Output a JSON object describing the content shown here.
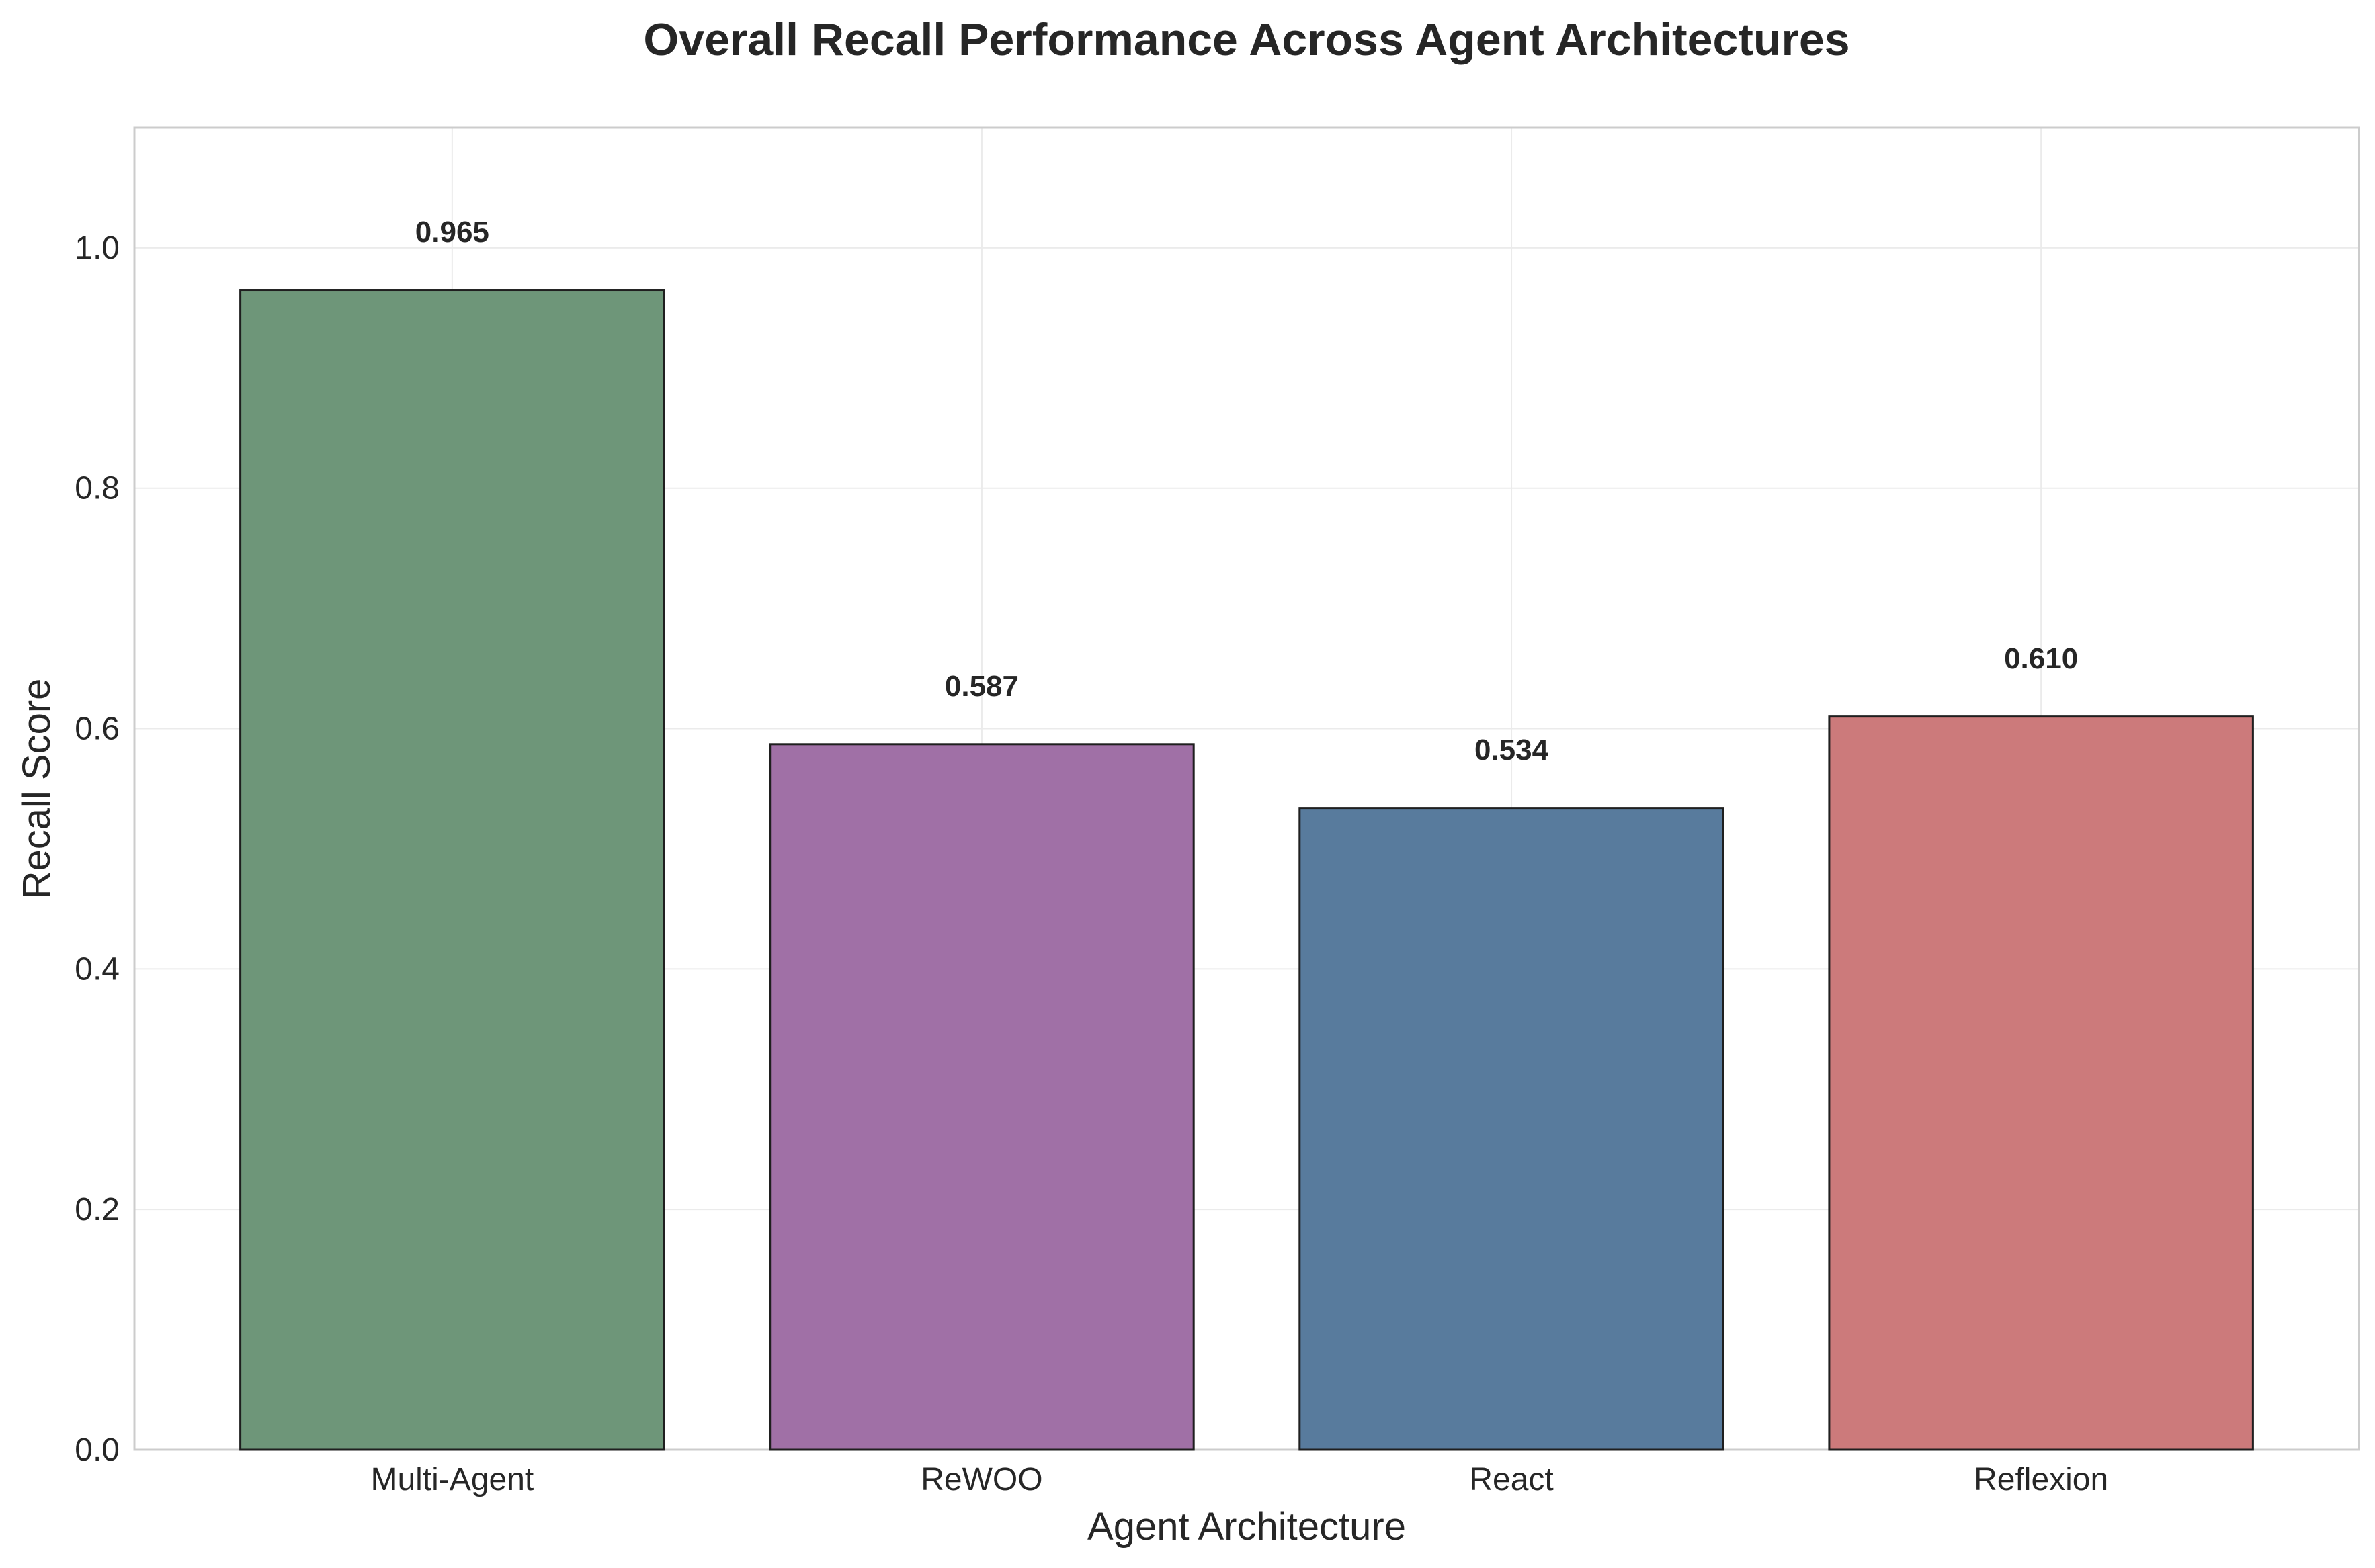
{
  "chart_data": {
    "type": "bar",
    "title": "Overall Recall Performance Across Agent Architectures",
    "xlabel": "Agent Architecture",
    "ylabel": "Recall Score",
    "categories": [
      "Multi-Agent",
      "ReWOO",
      "React",
      "Reflexion"
    ],
    "values": [
      0.965,
      0.587,
      0.534,
      0.61
    ],
    "value_labels": [
      "0.965",
      "0.587",
      "0.534",
      "0.610"
    ],
    "colors": [
      "#6e9679",
      "#a070a6",
      "#587b9d",
      "#cc7a7b"
    ],
    "ylim": [
      0,
      1.1
    ],
    "yticks": [
      0.0,
      0.2,
      0.4,
      0.6,
      0.8,
      1.0
    ],
    "ytick_labels": [
      "0.0",
      "0.2",
      "0.4",
      "0.6",
      "0.8",
      "1.0"
    ],
    "grid": true,
    "legend": false
  }
}
